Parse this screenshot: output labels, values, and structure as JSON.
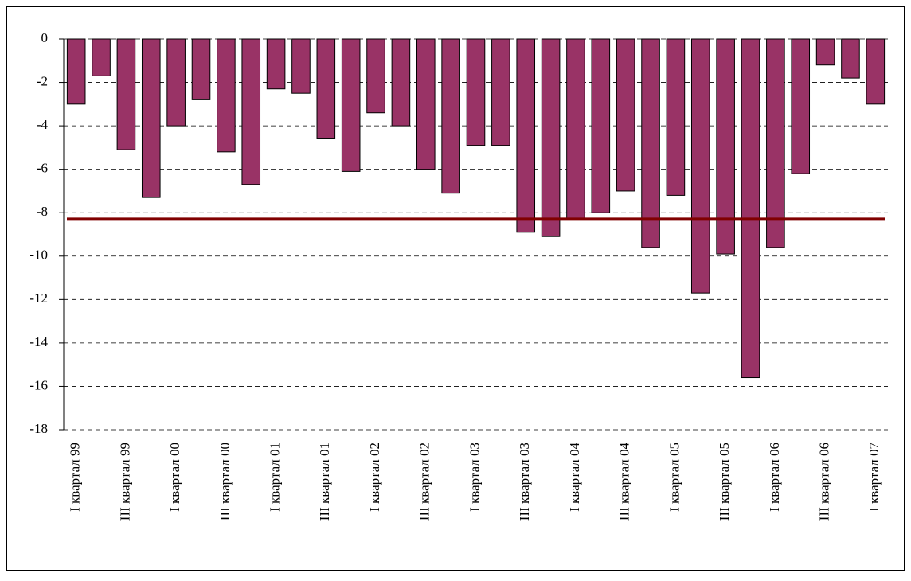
{
  "chart_data": {
    "type": "bar",
    "categories": [
      "I квартал 99",
      null,
      "III квартал 99",
      null,
      "I квартал 00",
      null,
      "III квартал 00",
      null,
      "I квартал 01",
      null,
      "III квартал 01",
      null,
      "I квартал 02",
      null,
      "III квартал 02",
      null,
      "I квартал 03",
      null,
      "III квартал 03",
      null,
      "I квартал 04",
      null,
      "III квартал 04",
      null,
      "I квартал 05",
      null,
      "III квартал 05",
      null,
      "I квартал 06",
      null,
      "III квартал 06",
      null,
      "I квартал 07"
    ],
    "values": [
      -3.0,
      -1.7,
      -5.1,
      -7.3,
      -4.0,
      -2.8,
      -5.2,
      -6.7,
      -2.3,
      -2.5,
      -4.6,
      -6.1,
      -3.4,
      -4.0,
      -6.0,
      -7.1,
      -4.9,
      -4.9,
      -8.9,
      -9.1,
      -8.3,
      -8.0,
      -7.0,
      -9.6,
      -7.2,
      -11.7,
      -9.9,
      -15.6,
      -9.6,
      -6.2,
      -1.2,
      -1.8,
      -3.0
    ],
    "color": "#993366",
    "reference_line": {
      "value": -8.3,
      "color": "#800000"
    },
    "ylim": [
      -18,
      0
    ],
    "yticks": [
      0,
      -2,
      -4,
      -6,
      -8,
      -10,
      -12,
      -14,
      -16,
      -18
    ],
    "grid": true
  }
}
